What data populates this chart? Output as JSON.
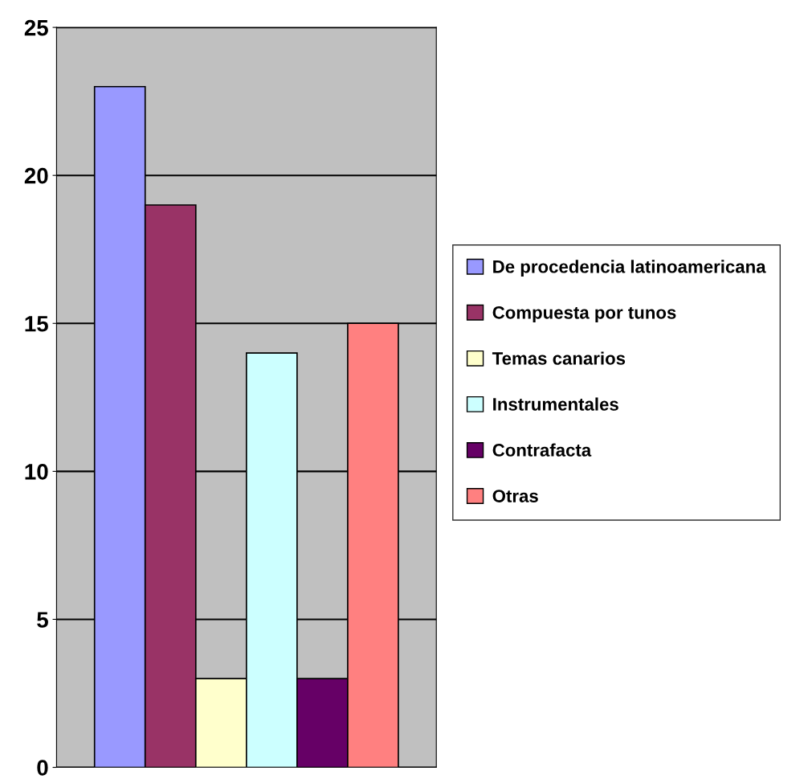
{
  "chart_data": {
    "type": "bar",
    "categories": [
      null
    ],
    "series": [
      {
        "name": "De procedencia latinoamericana",
        "color": "#9999ff",
        "values": [
          23
        ]
      },
      {
        "name": "Compuesta por tunos",
        "color": "#993366",
        "values": [
          19
        ]
      },
      {
        "name": "Temas canarios",
        "color": "#ffffcc",
        "values": [
          3
        ]
      },
      {
        "name": "Instrumentales",
        "color": "#ccffff",
        "values": [
          14
        ]
      },
      {
        "name": "Contrafacta",
        "color": "#660066",
        "values": [
          3
        ]
      },
      {
        "name": "Otras",
        "color": "#ff8080",
        "values": [
          15
        ]
      }
    ],
    "ylim": [
      0,
      25
    ],
    "yticks": [
      0,
      5,
      10,
      15,
      20,
      25
    ],
    "grid": "y",
    "legend": "right"
  }
}
